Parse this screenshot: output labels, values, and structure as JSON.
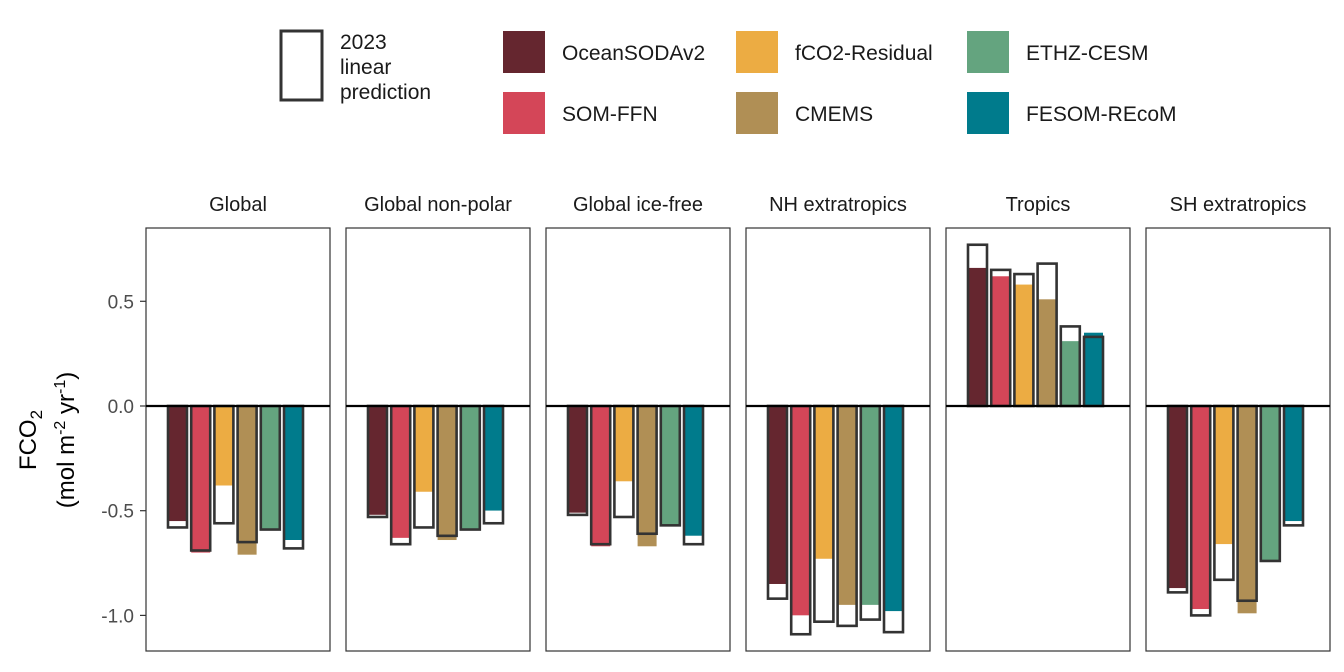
{
  "chart_data": {
    "type": "bar",
    "ylabel_main": "FCO",
    "ylabel_sub": "2",
    "ylabel_units_parts": [
      "(mol m",
      "-2",
      " yr",
      "-1",
      ")"
    ],
    "ylim": [
      -1.17,
      0.85
    ],
    "yticks": [
      0.5,
      0.0,
      -0.5,
      -1.0
    ],
    "ytick_labels": [
      "0.5",
      "0.0",
      "-0.5",
      "-1.0"
    ],
    "legend_prediction": {
      "lines": [
        "2023",
        "linear",
        "prediction"
      ]
    },
    "series": [
      {
        "name": "OceanSODAv2",
        "color": "#65262f"
      },
      {
        "name": "SOM-FFN",
        "color": "#d44658"
      },
      {
        "name": "fCO2-Residual",
        "color": "#ecac43"
      },
      {
        "name": "CMEMS",
        "color": "#b08f55"
      },
      {
        "name": "ETHZ-CESM",
        "color": "#64a47f"
      },
      {
        "name": "FESOM-REcoM",
        "color": "#007b8c"
      }
    ],
    "panels": [
      {
        "title": "Global",
        "observed": [
          -0.55,
          -0.7,
          -0.38,
          -0.71,
          -0.59,
          -0.64
        ],
        "prediction": [
          -0.58,
          -0.69,
          -0.56,
          -0.65,
          -0.59,
          -0.68
        ]
      },
      {
        "title": "Global non-polar",
        "observed": [
          -0.52,
          -0.63,
          -0.41,
          -0.64,
          -0.59,
          -0.5
        ],
        "prediction": [
          -0.53,
          -0.66,
          -0.58,
          -0.62,
          -0.59,
          -0.56
        ]
      },
      {
        "title": "Global ice-free",
        "observed": [
          -0.51,
          -0.67,
          -0.36,
          -0.67,
          -0.57,
          -0.62
        ],
        "prediction": [
          -0.52,
          -0.66,
          -0.53,
          -0.61,
          -0.57,
          -0.66
        ]
      },
      {
        "title": "NH extratropics",
        "observed": [
          -0.85,
          -1.0,
          -0.73,
          -0.95,
          -0.95,
          -0.98
        ],
        "prediction": [
          -0.92,
          -1.09,
          -1.03,
          -1.05,
          -1.02,
          -1.08
        ]
      },
      {
        "title": "Tropics",
        "observed": [
          0.66,
          0.62,
          0.58,
          0.51,
          0.31,
          0.35
        ],
        "prediction": [
          0.77,
          0.65,
          0.63,
          0.68,
          0.38,
          0.33
        ]
      },
      {
        "title": "SH extratropics",
        "observed": [
          -0.87,
          -0.97,
          -0.66,
          -0.99,
          -0.74,
          -0.55
        ],
        "prediction": [
          -0.89,
          -1.0,
          -0.83,
          -0.93,
          -0.74,
          -0.57
        ]
      }
    ]
  }
}
